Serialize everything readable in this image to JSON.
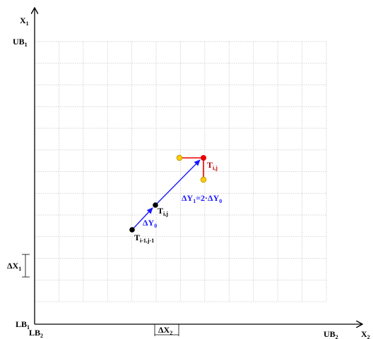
{
  "axes": {
    "x_label": "X",
    "x_sub": "2",
    "y_label": "X",
    "y_sub": "1",
    "ub1": "UB",
    "ub1_sub": "1",
    "ub2": "UB",
    "ub2_sub": "2",
    "lb1": "LB",
    "lb1_sub": "1",
    "lb2": "LB",
    "lb2_sub": "2"
  },
  "grid": {
    "columns": 12,
    "rows": 12
  },
  "dimensions": {
    "dx1": "ΔX",
    "dx1_sub": "1",
    "dx2": "ΔX",
    "dx2_sub": "2"
  },
  "points": {
    "t_prev": "T",
    "t_prev_sub": "i-1,j-1",
    "t_mid": "T",
    "t_mid_sub": "i,j",
    "t_new": "T",
    "t_new_sub": "i,j"
  },
  "vectors": {
    "dy0": "ΔY",
    "dy0_sub": "0",
    "dy1": "ΔY",
    "dy1_sub": "1",
    "dy1_eq": "=2·ΔY",
    "dy1_eq_sub": "0"
  },
  "colors": {
    "vector_blue": "#1a1aff",
    "point_red": "#e60000",
    "label_red": "#c00000",
    "point_yellow": "#ffcc00",
    "grid": "#c8c8c8"
  }
}
